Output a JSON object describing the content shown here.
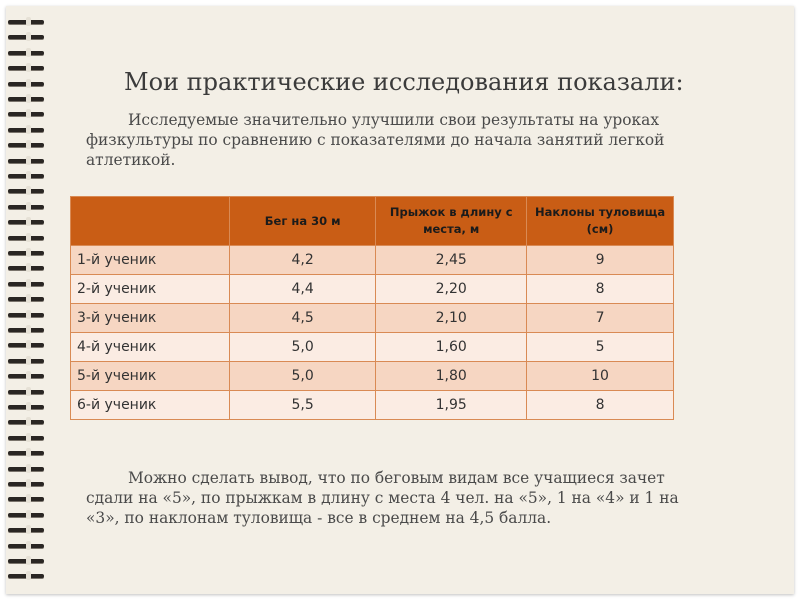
{
  "slide": {
    "title": "Мои практические исследования показали:",
    "intro": "Исследуемые значительно улучшили свои результаты на уроках физкультуры по сравнению с показателями до начала занятий легкой атлетикой.",
    "conclusion": "Можно сделать вывод, что по беговым видам все учащиеся зачет сдали на «5», по прыжкам в длину с места 4 чел. на «5», 1 на «4» и 1 на «3», по наклонам туловища - все в среднем  на 4,5 балла."
  },
  "table": {
    "headers": [
      "",
      "Бег на 30 м",
      "Прыжок в длину с места, м",
      "Наклоны туловища (см)"
    ],
    "rows": [
      [
        "1-й ученик",
        "4,2",
        "2,45",
        "9"
      ],
      [
        "2-й ученик",
        "4,4",
        "2,20",
        "8"
      ],
      [
        "3-й ученик",
        "4,5",
        "2,10",
        "7"
      ],
      [
        "4-й ученик",
        "5,0",
        "1,60",
        "5"
      ],
      [
        "5-й ученик",
        "5,0",
        "1,80",
        "10"
      ],
      [
        "6-й ученик",
        "5,5",
        "1,95",
        "8"
      ]
    ]
  },
  "colors": {
    "header_fill": "#c95d15",
    "row_dark": "#f6d6c2",
    "row_light": "#fbece3",
    "paper": "#f3efe6",
    "binding": "#2a2623"
  }
}
